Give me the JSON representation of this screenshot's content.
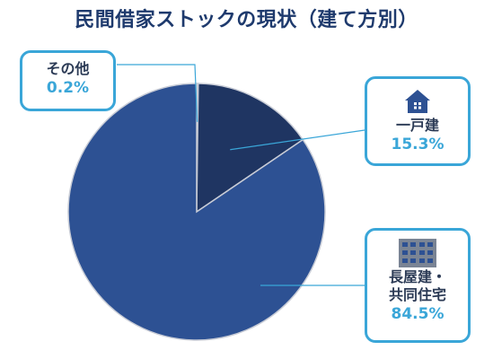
{
  "chart_data": {
    "type": "pie",
    "title": "民間借家ストックの現状（建て方別）",
    "slices": [
      {
        "label": "その他",
        "value": 0.2,
        "value_label": "0.2%",
        "color": "#d9dde6"
      },
      {
        "label": "一戸建",
        "value": 15.3,
        "value_label": "15.3%",
        "color": "#1f3562"
      },
      {
        "label": "長屋建・共同住宅",
        "label_lines": [
          "長屋建・",
          "共同住宅"
        ],
        "value": 84.5,
        "value_label": "84.5%",
        "color": "#2d5193"
      }
    ],
    "start": "12 o'clock",
    "direction": "clockwise",
    "legend": "callout boxes"
  },
  "icons": {
    "house": "house-icon",
    "apartment": "apartment-building-icon"
  },
  "colors": {
    "accent": "#3aa6d8",
    "title": "#1e3a6d",
    "slice_border": "#c8ccd6"
  }
}
